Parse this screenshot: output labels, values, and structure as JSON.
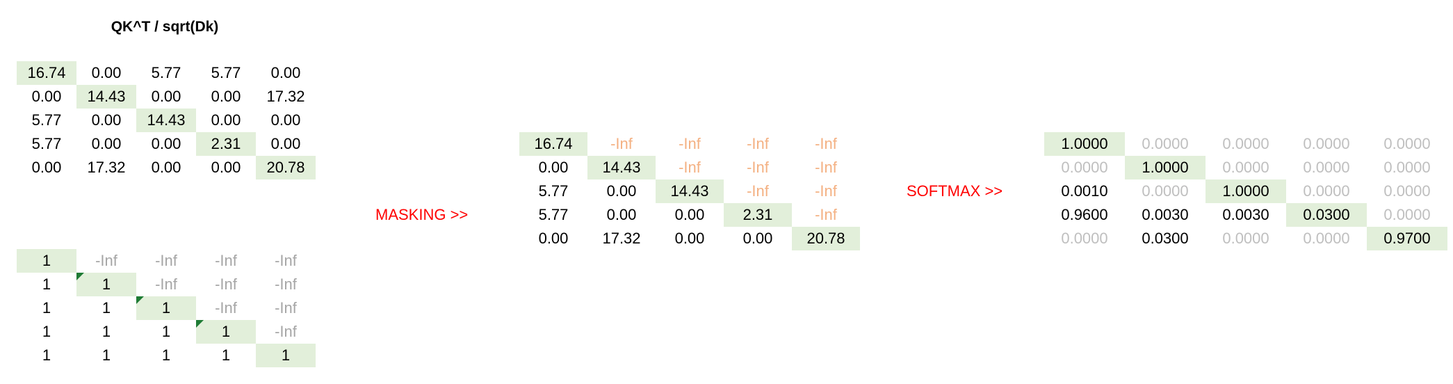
{
  "scores": {
    "title": "QK^T / sqrt(Dk)",
    "rows": [
      [
        "16.74",
        "0.00",
        "5.77",
        "5.77",
        "0.00"
      ],
      [
        "0.00",
        "14.43",
        "0.00",
        "0.00",
        "17.32"
      ],
      [
        "5.77",
        "0.00",
        "14.43",
        "0.00",
        "0.00"
      ],
      [
        "5.77",
        "0.00",
        "0.00",
        "2.31",
        "0.00"
      ],
      [
        "0.00",
        "17.32",
        "0.00",
        "0.00",
        "20.78"
      ]
    ]
  },
  "mask": {
    "rows": [
      [
        "1",
        "-Inf",
        "-Inf",
        "-Inf",
        "-Inf"
      ],
      [
        "1",
        "1",
        "-Inf",
        "-Inf",
        "-Inf"
      ],
      [
        "1",
        "1",
        "1",
        "-Inf",
        "-Inf"
      ],
      [
        "1",
        "1",
        "1",
        "1",
        "-Inf"
      ],
      [
        "1",
        "1",
        "1",
        "1",
        "1"
      ]
    ]
  },
  "masking_label": "MASKING >>",
  "masked": {
    "rows": [
      [
        "16.74",
        "-Inf",
        "-Inf",
        "-Inf",
        "-Inf"
      ],
      [
        "0.00",
        "14.43",
        "-Inf",
        "-Inf",
        "-Inf"
      ],
      [
        "5.77",
        "0.00",
        "14.43",
        "-Inf",
        "-Inf"
      ],
      [
        "5.77",
        "0.00",
        "0.00",
        "2.31",
        "-Inf"
      ],
      [
        "0.00",
        "17.32",
        "0.00",
        "0.00",
        "20.78"
      ]
    ]
  },
  "softmax_label": "SOFTMAX >>",
  "softmax": {
    "rows": [
      [
        "1.0000",
        "0.0000",
        "0.0000",
        "0.0000",
        "0.0000"
      ],
      [
        "0.0000",
        "1.0000",
        "0.0000",
        "0.0000",
        "0.0000"
      ],
      [
        "0.0010",
        "0.0000",
        "1.0000",
        "0.0000",
        "0.0000"
      ],
      [
        "0.9600",
        "0.0030",
        "0.0030",
        "0.0300",
        "0.0000"
      ],
      [
        "0.0000",
        "0.0300",
        "0.0000",
        "0.0000",
        "0.9700"
      ]
    ]
  },
  "colors": {
    "diagonal_fill": "#e2efda",
    "mask_inf_text": "#a6a6a6",
    "masked_inf_text": "#f4b183",
    "softmax_zero_text": "#bfbfbf",
    "label_text": "#ff0000",
    "comment_marker": "#1e7b34"
  }
}
